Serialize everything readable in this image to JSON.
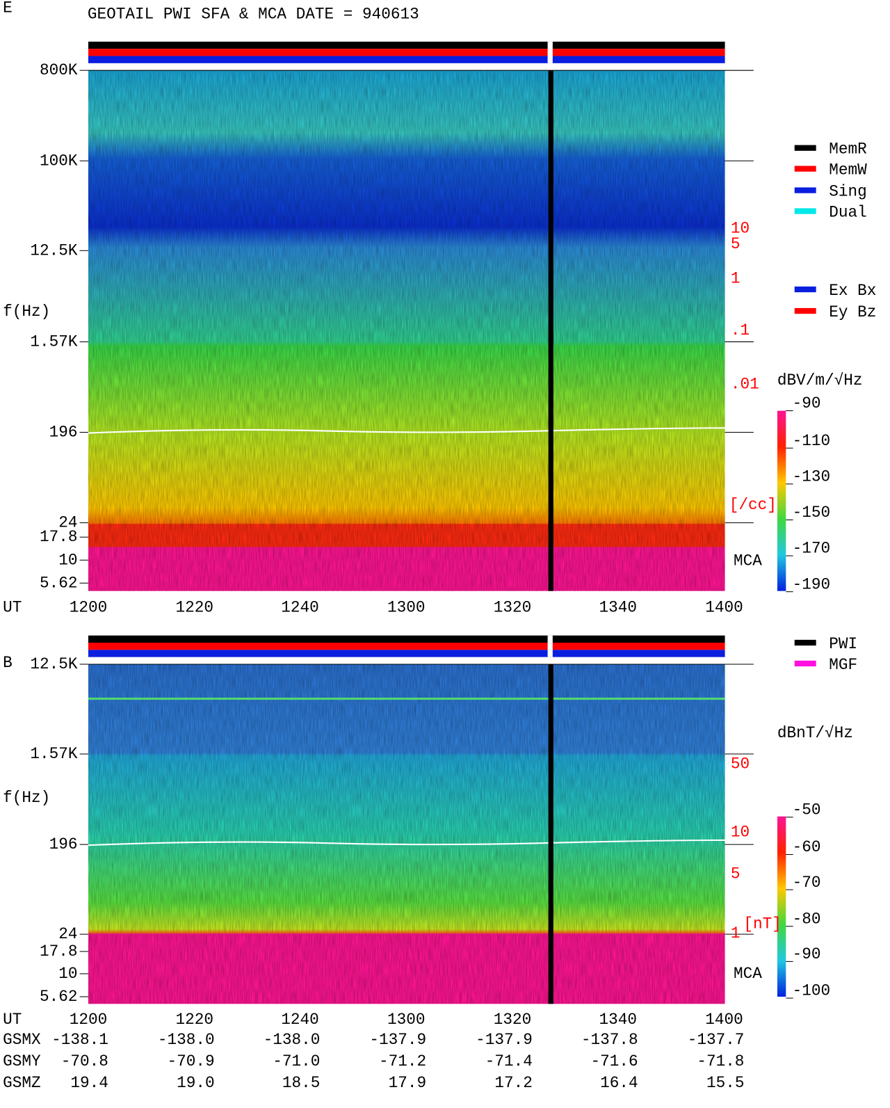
{
  "header": {
    "title": "GEOTAIL  PWI SFA & MCA   DATE = 940613"
  },
  "panels": [
    {
      "label": "E",
      "y_label": "f(Hz)",
      "y_ticks": [
        "800K",
        "100K",
        "12.5K",
        "1.57K",
        "196",
        "24",
        "17.8",
        "10",
        "5.62"
      ],
      "x_label": "UT",
      "x_ticks": [
        "1200",
        "1220",
        "1240",
        "1300",
        "1320",
        "1340",
        "1400"
      ],
      "colorbar": {
        "unit": "dBV/m/√Hz",
        "ticks": [
          "-90",
          "-110",
          "-130",
          "-150",
          "-170",
          "-190"
        ]
      },
      "right_scale": {
        "ticks": [
          "10",
          "5",
          "1",
          ".1",
          ".01"
        ],
        "unit": "[/cc]"
      },
      "mca": "MCA"
    },
    {
      "label": "B",
      "y_label": "f(Hz)",
      "y_ticks": [
        "12.5K",
        "1.57K",
        "196",
        "24",
        "17.8",
        "10",
        "5.62"
      ],
      "x_label": "UT",
      "x_ticks": [
        "1200",
        "1220",
        "1240",
        "1300",
        "1320",
        "1340",
        "1400"
      ],
      "colorbar": {
        "unit": "dBnT/√Hz",
        "ticks": [
          "-50",
          "-60",
          "-70",
          "-80",
          "-90",
          "-100"
        ]
      },
      "right_scale": {
        "ticks": [
          "50",
          "10",
          "5",
          "1"
        ],
        "unit": "[nT]"
      },
      "mca": "MCA"
    }
  ],
  "legend": {
    "memory": [
      "MemR",
      "MemW",
      "Sing",
      "Dual"
    ],
    "antenna": [
      "Ex Bx",
      "Ey Bz"
    ],
    "source": [
      "PWI",
      "MGF"
    ]
  },
  "orbit": {
    "rows": [
      {
        "label": "GSMX",
        "values": [
          "-138.1",
          "-138.0",
          "-138.0",
          "-137.9",
          "-137.9",
          "-137.8",
          "-137.7"
        ]
      },
      {
        "label": "GSMY",
        "values": [
          "-70.8",
          "-70.9",
          "-71.0",
          "-71.2",
          "-71.4",
          "-71.6",
          "-71.8"
        ]
      },
      {
        "label": "GSMZ",
        "values": [
          "19.4",
          "19.0",
          "18.5",
          "17.9",
          "17.2",
          "16.4",
          "15.5"
        ]
      }
    ]
  }
}
